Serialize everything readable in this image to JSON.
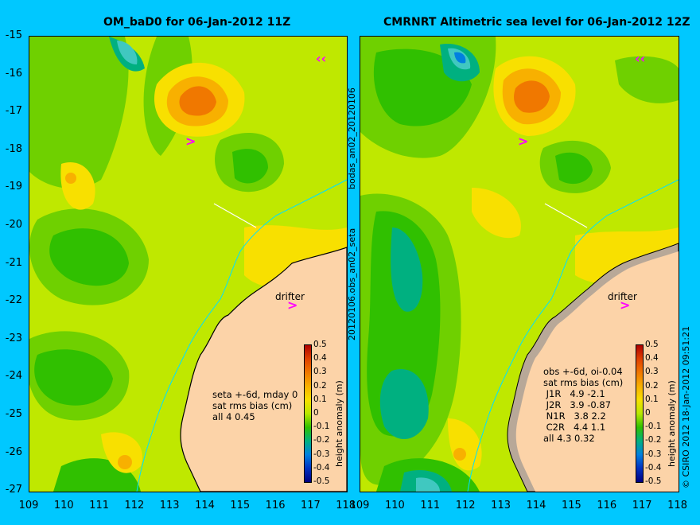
{
  "left_panel": {
    "title": "OM_baD0 for 06-Jan-2012 11Z",
    "annotation": "seta +-6d, mday 0\nsat rms bias (cm)\nall 4 0.45",
    "side_label": "20120106.obs_an02_seta",
    "drifter_label": "drifter"
  },
  "right_panel": {
    "title": "CMRNRT Altimetric sea level  for 06-Jan-2012 12Z",
    "annotation": "obs +-6d, oi-0.04\nsat rms bias (cm)\n J1R   4.9 -2.1\n J2R   3.9 -0.87\n N1R   3.8 2.2\n C2R   4.4 1.1\nall 4.3 0.32",
    "side_label": "bodas_an02_20120106",
    "drifter_label": "drifter"
  },
  "y_axis_ticks": [
    "-15",
    "-16",
    "-17",
    "-18",
    "-19",
    "-20",
    "-21",
    "-22",
    "-23",
    "-24",
    "-25",
    "-26",
    "-27"
  ],
  "x_axis_ticks": [
    "109",
    "110",
    "111",
    "112",
    "113",
    "114",
    "115",
    "116",
    "117",
    "118"
  ],
  "colorbar": {
    "label": "height anomaly (m)",
    "ticks": [
      "0.5",
      "0.4",
      "0.3",
      "0.2",
      "0.1",
      "0",
      "-0.1",
      "-0.2",
      "-0.3",
      "-0.4",
      "-0.5"
    ],
    "colors": [
      "#b00000",
      "#e04000",
      "#f07800",
      "#f8b000",
      "#f8e000",
      "#b8e800",
      "#30c000",
      "#00b080",
      "#0080e0",
      "#0030c0",
      "#000080"
    ]
  },
  "copyright": "© CSIRO 2012  18-Jan-2012 09:51:21",
  "colors": {
    "background": "#00c8ff",
    "land": "#fcd3a8",
    "marker_arrow": "#ff00ff"
  }
}
